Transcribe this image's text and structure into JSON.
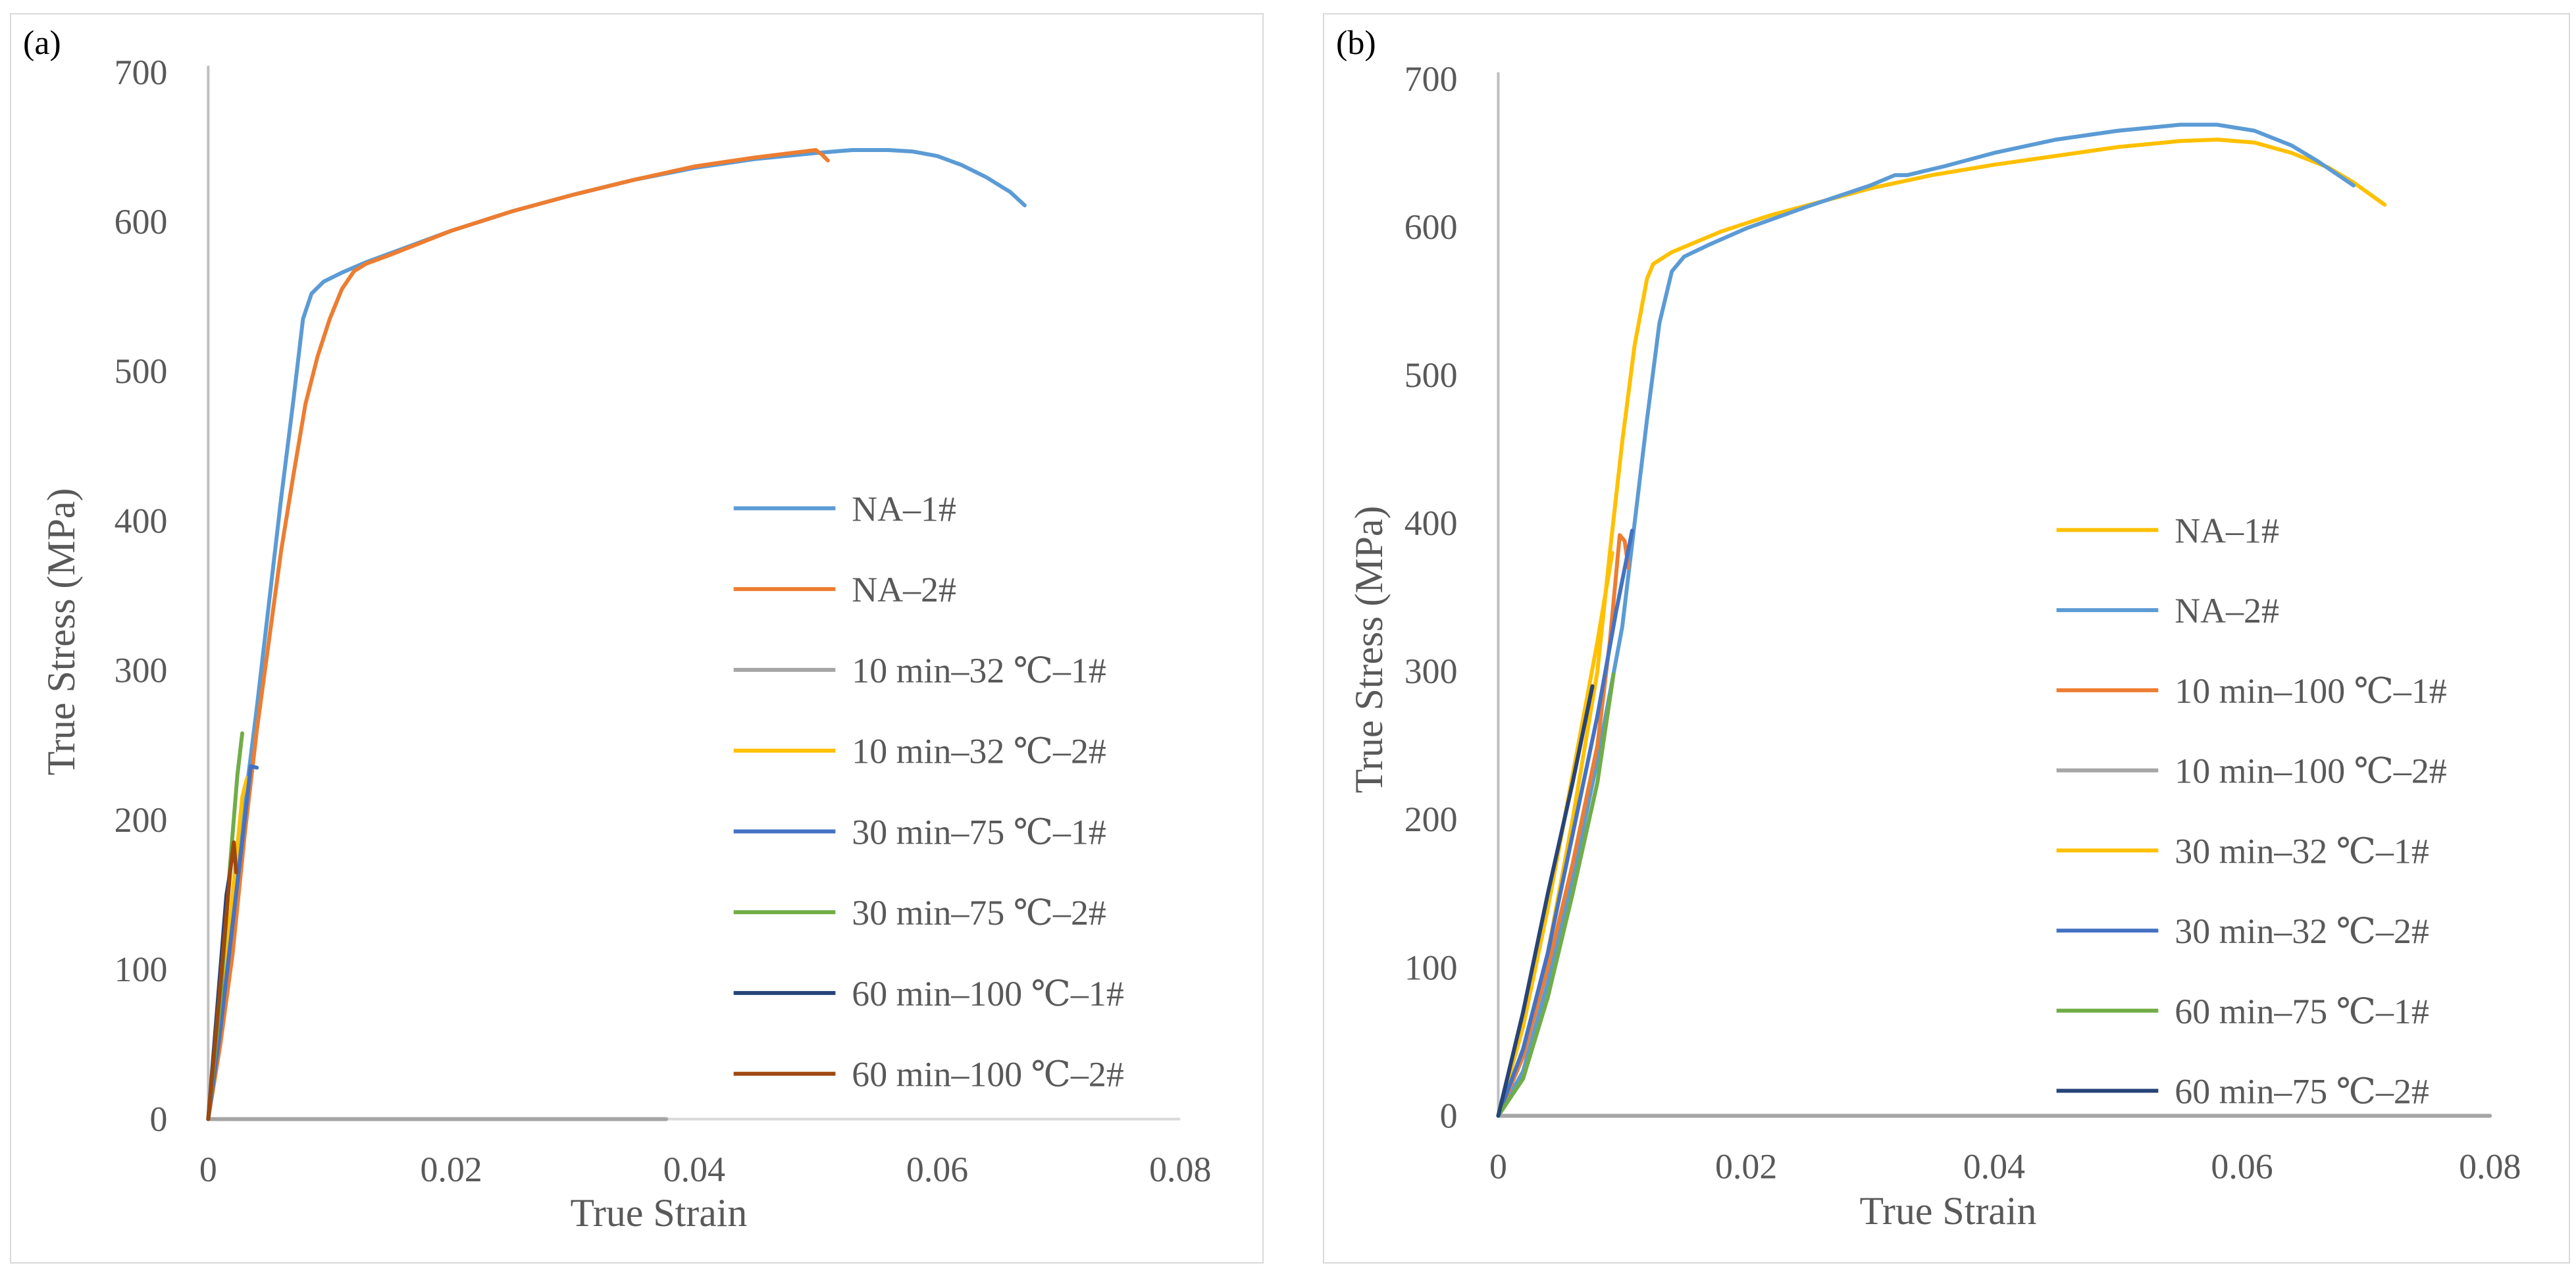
{
  "chart_data": [
    {
      "type": "line",
      "panel_label": "(a)",
      "xlabel": "True Strain",
      "ylabel": "True Stress (MPa)",
      "xlim": [
        0,
        0.08
      ],
      "ylim": [
        0,
        700
      ],
      "x_ticks": [
        "0",
        "0.02",
        "0.04",
        "0.06",
        "0.08"
      ],
      "y_ticks": [
        "0",
        "100",
        "200",
        "300",
        "400",
        "500",
        "600",
        "700"
      ],
      "grid": false,
      "legend": "right",
      "series": [
        {
          "name": "NA–1#",
          "color": "#5b9bd5",
          "points": [
            [
              0.0,
              0.0
            ],
            [
              0.001,
              60
            ],
            [
              0.002,
              140
            ],
            [
              0.003,
              210
            ],
            [
              0.004,
              275
            ],
            [
              0.005,
              345
            ],
            [
              0.006,
              415
            ],
            [
              0.007,
              480
            ],
            [
              0.0078,
              535
            ],
            [
              0.0085,
              552
            ],
            [
              0.0095,
              560
            ],
            [
              0.011,
              566
            ],
            [
              0.013,
              573
            ],
            [
              0.016,
              582
            ],
            [
              0.02,
              594
            ],
            [
              0.025,
              607
            ],
            [
              0.03,
              618
            ],
            [
              0.035,
              628
            ],
            [
              0.04,
              636
            ],
            [
              0.045,
              642
            ],
            [
              0.05,
              646
            ],
            [
              0.053,
              648
            ],
            [
              0.056,
              648
            ],
            [
              0.058,
              647
            ],
            [
              0.06,
              644
            ],
            [
              0.062,
              638
            ],
            [
              0.064,
              630
            ],
            [
              0.066,
              620
            ],
            [
              0.0672,
              611
            ]
          ]
        },
        {
          "name": "NA–2#",
          "color": "#ed7d31",
          "points": [
            [
              0.0,
              0.0
            ],
            [
              0.001,
              50
            ],
            [
              0.002,
              110
            ],
            [
              0.003,
              190
            ],
            [
              0.004,
              260
            ],
            [
              0.005,
              320
            ],
            [
              0.006,
              380
            ],
            [
              0.007,
              430
            ],
            [
              0.008,
              478
            ],
            [
              0.009,
              510
            ],
            [
              0.01,
              535
            ],
            [
              0.011,
              555
            ],
            [
              0.012,
              567
            ],
            [
              0.013,
              572
            ],
            [
              0.015,
              578
            ],
            [
              0.02,
              594
            ],
            [
              0.025,
              607
            ],
            [
              0.03,
              618
            ],
            [
              0.035,
              628
            ],
            [
              0.04,
              637
            ],
            [
              0.045,
              643
            ],
            [
              0.05,
              648
            ],
            [
              0.0505,
              645
            ],
            [
              0.051,
              641
            ]
          ]
        },
        {
          "name": "10 min–32 ℃–1#",
          "color": "#a5a5a5",
          "points": [
            [
              0.0,
              0.0
            ],
            [
              0.0377,
              0.0
            ]
          ]
        },
        {
          "name": "10 min–32 ℃–2#",
          "color": "#ffc000",
          "points": [
            [
              0.0,
              0.0
            ],
            [
              0.001,
              70
            ],
            [
              0.002,
              150
            ],
            [
              0.0028,
              215
            ],
            [
              0.003,
              222
            ],
            [
              0.0032,
              228
            ]
          ]
        },
        {
          "name": "30 min–75 ℃–1#",
          "color": "#4472c4",
          "points": [
            [
              0.0,
              0.0
            ],
            [
              0.001,
              60
            ],
            [
              0.002,
              130
            ],
            [
              0.003,
              200
            ],
            [
              0.0035,
              236
            ],
            [
              0.004,
              235
            ]
          ]
        },
        {
          "name": "30 min–75 ℃–2#",
          "color": "#70ad47",
          "points": [
            [
              0.0,
              0.0
            ],
            [
              0.001,
              80
            ],
            [
              0.0018,
              170
            ],
            [
              0.0024,
              230
            ],
            [
              0.0028,
              258
            ]
          ]
        },
        {
          "name": "60 min–100 ℃–1#",
          "color": "#264478",
          "points": [
            [
              0.0,
              0.0
            ],
            [
              0.0008,
              80
            ],
            [
              0.0015,
              150
            ],
            [
              0.0018,
              165
            ]
          ]
        },
        {
          "name": "60 min–100 ℃–2#",
          "color": "#9e480e",
          "points": [
            [
              0.0,
              0.0
            ],
            [
              0.001,
              90
            ],
            [
              0.0018,
              165
            ],
            [
              0.0021,
              185
            ],
            [
              0.0023,
              165
            ]
          ]
        }
      ]
    },
    {
      "type": "line",
      "panel_label": "(b)",
      "xlabel": "True Strain",
      "ylabel": "True Stress (MPa)",
      "xlim": [
        0,
        0.08
      ],
      "ylim": [
        0,
        700
      ],
      "x_ticks": [
        "0",
        "0.02",
        "0.04",
        "0.06",
        "0.08"
      ],
      "y_ticks": [
        "0",
        "100",
        "200",
        "300",
        "400",
        "500",
        "600",
        "700"
      ],
      "grid": false,
      "legend": "right",
      "series": [
        {
          "name": "NA–1#",
          "color": "#ffc000",
          "points": [
            [
              0.0,
              0.0
            ],
            [
              0.002,
              40
            ],
            [
              0.004,
              110
            ],
            [
              0.006,
              200
            ],
            [
              0.008,
              300
            ],
            [
              0.009,
              380
            ],
            [
              0.01,
              455
            ],
            [
              0.011,
              520
            ],
            [
              0.012,
              565
            ],
            [
              0.0125,
              575
            ],
            [
              0.014,
              583
            ],
            [
              0.016,
              590
            ],
            [
              0.018,
              597
            ],
            [
              0.022,
              608
            ],
            [
              0.026,
              617
            ],
            [
              0.03,
              626
            ],
            [
              0.035,
              635
            ],
            [
              0.04,
              642
            ],
            [
              0.045,
              648
            ],
            [
              0.05,
              654
            ],
            [
              0.055,
              658
            ],
            [
              0.058,
              659
            ],
            [
              0.061,
              657
            ],
            [
              0.064,
              650
            ],
            [
              0.067,
              640
            ],
            [
              0.069,
              630
            ],
            [
              0.0715,
              615
            ]
          ]
        },
        {
          "name": "NA–2#",
          "color": "#5b9bd5",
          "points": [
            [
              0.0,
              0.0
            ],
            [
              0.002,
              30
            ],
            [
              0.004,
              90
            ],
            [
              0.006,
              160
            ],
            [
              0.008,
              240
            ],
            [
              0.01,
              330
            ],
            [
              0.011,
              400
            ],
            [
              0.012,
              470
            ],
            [
              0.013,
              535
            ],
            [
              0.014,
              570
            ],
            [
              0.015,
              580
            ],
            [
              0.017,
              588
            ],
            [
              0.02,
              599
            ],
            [
              0.025,
              614
            ],
            [
              0.03,
              628
            ],
            [
              0.032,
              635
            ],
            [
              0.033,
              635
            ],
            [
              0.036,
              641
            ],
            [
              0.04,
              650
            ],
            [
              0.045,
              659
            ],
            [
              0.05,
              665
            ],
            [
              0.055,
              669
            ],
            [
              0.058,
              669
            ],
            [
              0.061,
              665
            ],
            [
              0.064,
              655
            ],
            [
              0.066,
              645
            ],
            [
              0.069,
              628
            ]
          ]
        },
        {
          "name": "10 min–100 ℃–1#",
          "color": "#ed7d31",
          "points": [
            [
              0.0,
              0.0
            ],
            [
              0.002,
              40
            ],
            [
              0.004,
              100
            ],
            [
              0.006,
              170
            ],
            [
              0.008,
              250
            ],
            [
              0.009,
              320
            ],
            [
              0.0098,
              392
            ],
            [
              0.0102,
              388
            ],
            [
              0.0105,
              370
            ]
          ]
        },
        {
          "name": "10 min–100 ℃–2#",
          "color": "#a5a5a5",
          "points": [
            [
              0.0,
              0.0
            ],
            [
              0.08,
              0.0
            ]
          ]
        },
        {
          "name": "30 min–32 ℃–1#",
          "color": "#ffc000",
          "points": [
            [
              0.0,
              0.0
            ],
            [
              0.002,
              60
            ],
            [
              0.004,
              140
            ],
            [
              0.006,
              230
            ],
            [
              0.008,
              320
            ],
            [
              0.0092,
              380
            ]
          ]
        },
        {
          "name": "30 min–32 ℃–2#",
          "color": "#4472c4",
          "points": [
            [
              0.0,
              0.0
            ],
            [
              0.002,
              45
            ],
            [
              0.004,
              110
            ],
            [
              0.006,
              190
            ],
            [
              0.008,
              270
            ],
            [
              0.0095,
              340
            ],
            [
              0.0108,
              395
            ]
          ]
        },
        {
          "name": "60 min–75 ℃–1#",
          "color": "#70ad47",
          "points": [
            [
              0.0,
              0.0
            ],
            [
              0.002,
              25
            ],
            [
              0.004,
              80
            ],
            [
              0.006,
              150
            ],
            [
              0.008,
              225
            ],
            [
              0.0093,
              298
            ]
          ]
        },
        {
          "name": "60 min–75 ℃–2#",
          "color": "#264478",
          "points": [
            [
              0.0,
              0.0
            ],
            [
              0.002,
              70
            ],
            [
              0.004,
              150
            ],
            [
              0.006,
              225
            ],
            [
              0.0076,
              290
            ]
          ]
        }
      ]
    }
  ]
}
